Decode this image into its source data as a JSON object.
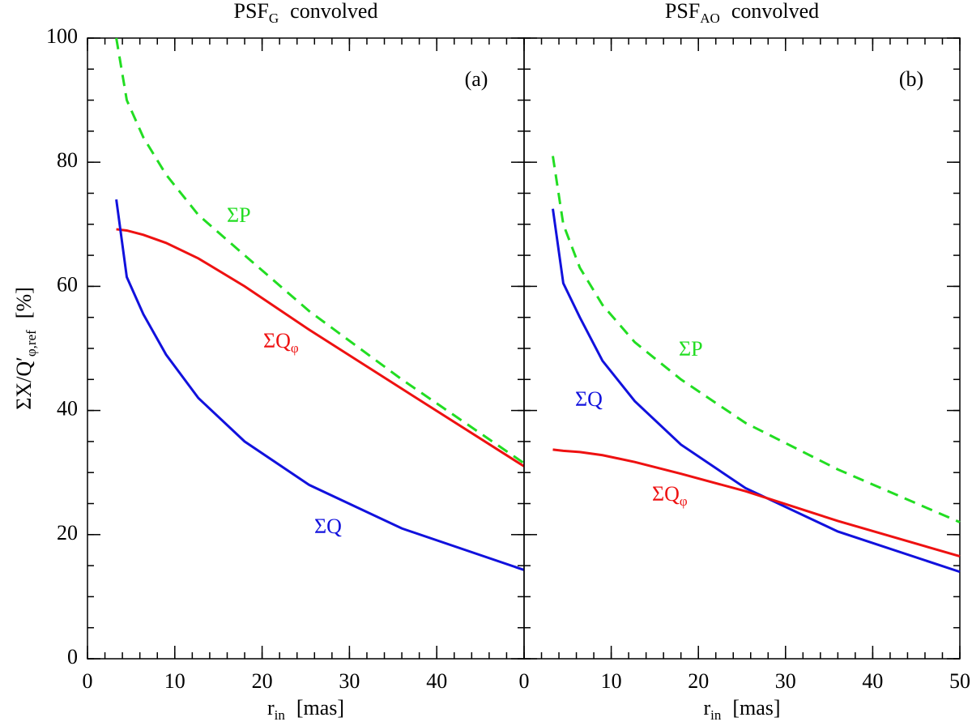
{
  "chart_data": [
    {
      "type": "line",
      "title": {
        "text": "PSF",
        "sub": "G",
        "after": "convolved"
      },
      "panel_label": "(a)",
      "ylabel": {
        "text": "ΣX/Q′",
        "sub": "φ,ref",
        "after": "[%]"
      },
      "xlabel": {
        "text": "r",
        "sub": "in",
        "after": "[mas]"
      },
      "xlim": [
        0,
        50
      ],
      "xticks": [
        0,
        10,
        20,
        30,
        40
      ],
      "ylim": [
        0,
        100
      ],
      "yticks": [
        0,
        20,
        40,
        60,
        80,
        100
      ],
      "x": [
        3.3,
        4.5,
        6.4,
        9,
        12.7,
        18,
        25.4,
        36,
        50
      ],
      "series": [
        {
          "name": "ΣP",
          "color": "#22dd22",
          "dashed": true,
          "values": [
            100,
            90,
            84,
            78,
            71.5,
            65,
            56,
            45,
            31.5
          ]
        },
        {
          "name": "ΣQ",
          "name_sub": "φ",
          "color": "#ee1111",
          "values": [
            69.2,
            69,
            68.3,
            67,
            64.5,
            60,
            53,
            43.5,
            31
          ]
        },
        {
          "name": "ΣQ",
          "color": "#1111dd",
          "values": [
            74,
            61.5,
            55.5,
            49,
            42,
            35,
            28,
            21,
            14.3
          ]
        }
      ]
    },
    {
      "type": "line",
      "title": {
        "text": "PSF",
        "sub": "AO",
        "after": "convolved"
      },
      "panel_label": "(b)",
      "xlabel": {
        "text": "r",
        "sub": "in",
        "after": "[mas]"
      },
      "xlim": [
        0,
        50
      ],
      "xticks": [
        0,
        10,
        20,
        30,
        40,
        50
      ],
      "ylim": [
        0,
        100
      ],
      "x": [
        3.3,
        4.5,
        6.4,
        9,
        12.7,
        18,
        25.4,
        36,
        50
      ],
      "series": [
        {
          "name": "ΣP",
          "color": "#22dd22",
          "dashed": true,
          "values": [
            81,
            70,
            63,
            57,
            51,
            45,
            38,
            30.5,
            22
          ]
        },
        {
          "name": "ΣQ",
          "color": "#1111dd",
          "values": [
            72.5,
            60.5,
            55,
            48,
            41.5,
            34.5,
            27.5,
            20.5,
            14
          ]
        },
        {
          "name": "ΣQ",
          "name_sub": "φ",
          "color": "#ee1111",
          "values": [
            33.7,
            33.5,
            33.3,
            32.8,
            31.7,
            29.8,
            27,
            22.2,
            16.5
          ]
        }
      ]
    }
  ]
}
